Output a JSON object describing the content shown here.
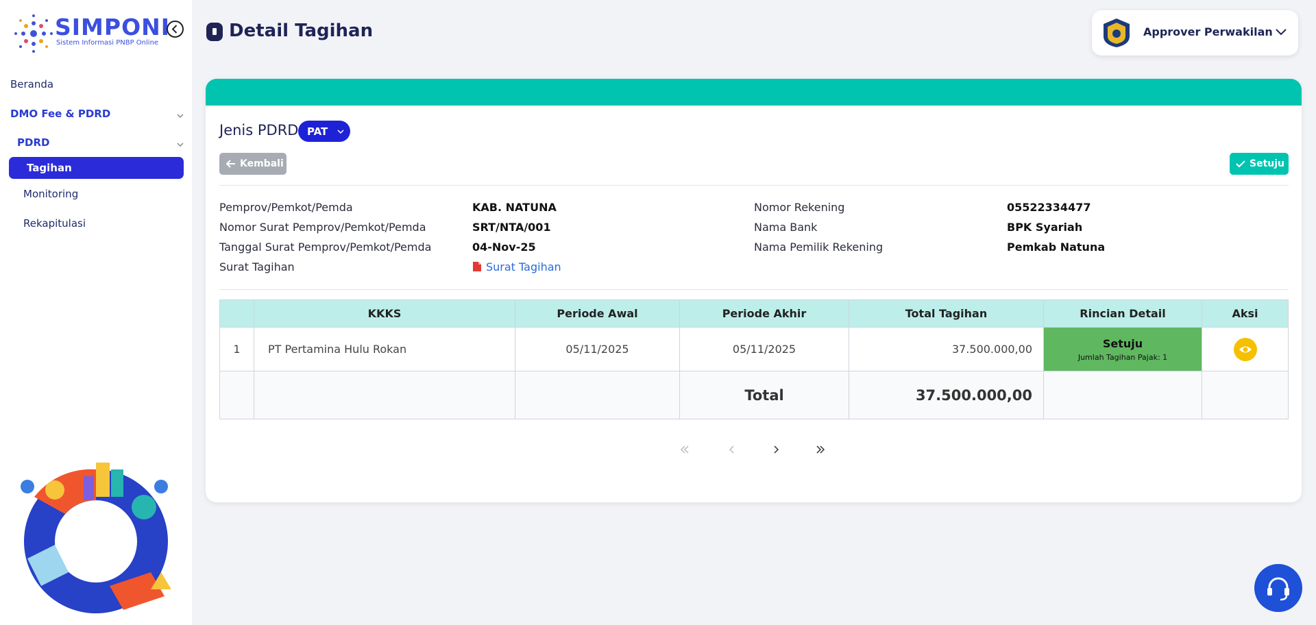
{
  "sidebar": {
    "logo_title": "SIMPONI",
    "logo_subtitle": "Sistem Informasi PNBP Online",
    "menu": [
      "Beranda",
      "DMO Fee & PDRD",
      "PDRD",
      "Tagihan",
      "Monitoring",
      "Rekapitulasi"
    ]
  },
  "header": {
    "title": "Detail Tagihan",
    "user": "Approver Perwakilan"
  },
  "filter": {
    "label": "Jenis PDRD",
    "value": "PAT"
  },
  "buttons": {
    "back": "Kembali",
    "approve": "Setuju"
  },
  "details": {
    "left": [
      {
        "label": "Pemprov/Pemkot/Pemda",
        "value": "KAB. NATUNA"
      },
      {
        "label": "Nomor Surat Pemprov/Pemkot/Pemda",
        "value": "SRT/NTA/001"
      },
      {
        "label": "Tanggal Surat Pemprov/Pemkot/Pemda",
        "value": "04-Nov-25"
      },
      {
        "label": "Surat Tagihan",
        "value": "Surat Tagihan"
      }
    ],
    "right": [
      {
        "label": "Nomor Rekening",
        "value": "05522334477"
      },
      {
        "label": "Nama Bank",
        "value": "BPK Syariah"
      },
      {
        "label": "Nama Pemilik Rekening",
        "value": "Pemkab Natuna"
      }
    ]
  },
  "table": {
    "headers": [
      "KKKS",
      "Periode Awal",
      "Periode Akhir",
      "Total Tagihan",
      "Rincian Detail",
      "Aksi"
    ],
    "rows": [
      {
        "no": "1",
        "kkks": "PT Pertamina Hulu Rokan",
        "start": "05/11/2025",
        "end": "05/11/2025",
        "total": "37.500.000,00",
        "status": "Setuju",
        "note": "Jumlah Tagihan Pajak: 1"
      }
    ],
    "total_label": "Total",
    "total_value": "37.500.000,00"
  }
}
